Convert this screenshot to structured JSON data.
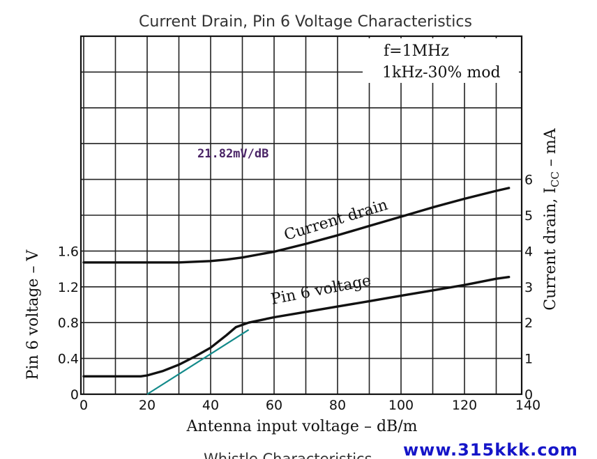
{
  "chart_data": {
    "type": "line",
    "title": "Current Drain, Pin 6 Voltage Characteristics",
    "xlabel": "Antenna input voltage  –  dB/m",
    "ylabel_left": "Pin 6 voltage  –  V",
    "ylabel_right_main": "Current drain, I",
    "ylabel_right_sub": "CC",
    "ylabel_right_unit": "  –  mA",
    "conditions": [
      "f=1MHz",
      "1kHz-30% mod"
    ],
    "slope_annotation": "21.82mV/dB",
    "xlim": [
      0,
      140
    ],
    "x_ticks": [
      "0",
      "20",
      "40",
      "60",
      "80",
      "100",
      "120",
      "140"
    ],
    "ylim_left": [
      0,
      4
    ],
    "y_ticks_left": [
      "0",
      "0.4",
      "0.8",
      "1.2",
      "1.6"
    ],
    "ylim_right": [
      0,
      10
    ],
    "y_ticks_right": [
      "0",
      "1",
      "2",
      "3",
      "4",
      "5",
      "6"
    ],
    "grid": true,
    "series": [
      {
        "name": "Current drain",
        "axis": "right",
        "x": [
          0,
          10,
          20,
          30,
          40,
          45,
          50,
          55,
          60,
          70,
          80,
          90,
          100,
          110,
          120,
          130,
          134
        ],
        "y": [
          3.68,
          3.68,
          3.68,
          3.68,
          3.72,
          3.76,
          3.82,
          3.9,
          3.98,
          4.2,
          4.44,
          4.7,
          4.96,
          5.22,
          5.46,
          5.68,
          5.76
        ]
      },
      {
        "name": "Pin 6 voltage",
        "axis": "left",
        "x": [
          0,
          10,
          18,
          20,
          25,
          30,
          35,
          40,
          45,
          48,
          52,
          60,
          70,
          80,
          90,
          100,
          110,
          120,
          130,
          134
        ],
        "y": [
          0.2,
          0.2,
          0.2,
          0.21,
          0.26,
          0.33,
          0.42,
          0.52,
          0.66,
          0.75,
          0.8,
          0.86,
          0.92,
          0.98,
          1.04,
          1.1,
          1.16,
          1.22,
          1.29,
          1.31
        ]
      }
    ],
    "tangent_line": {
      "x": [
        20,
        52
      ],
      "y": [
        0,
        0.72
      ],
      "color": "#138a8a"
    }
  },
  "cutoff_text": "Whistle Characteristics",
  "watermark": "www.315kkk.com",
  "colors": {
    "curve": "#111111",
    "grid": "#222222",
    "tangent": "#138a8a",
    "slope_text": "#4a2466",
    "watermark": "#1515c8"
  }
}
